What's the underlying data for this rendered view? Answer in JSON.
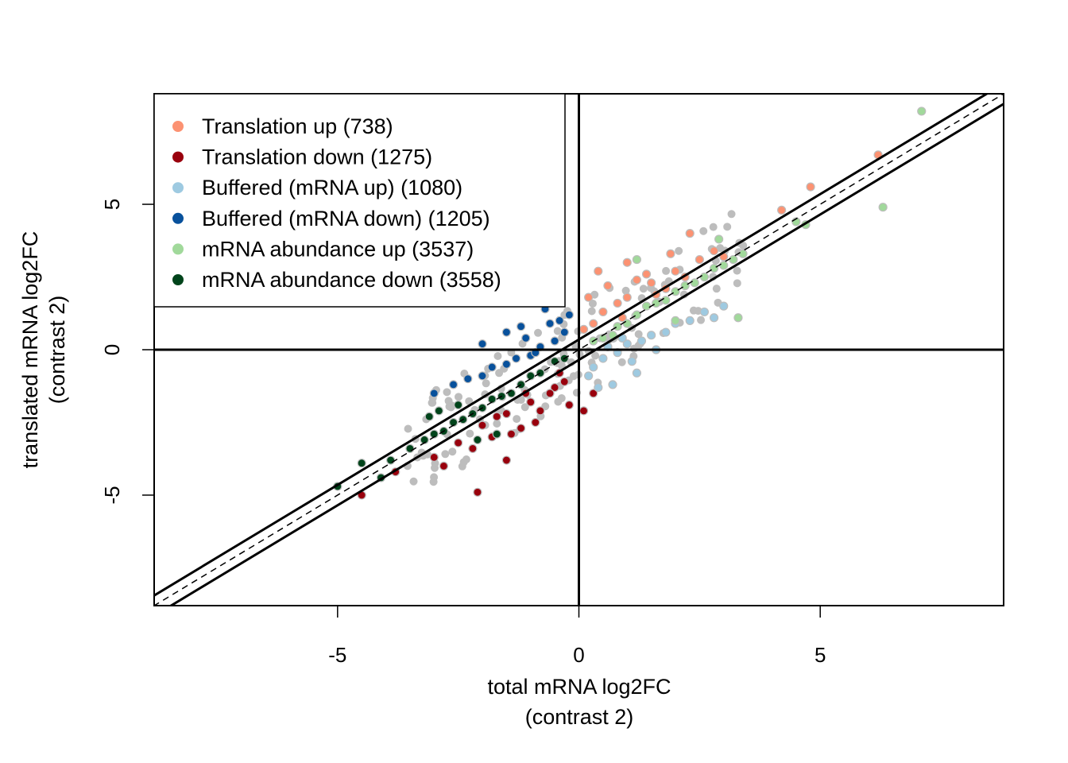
{
  "chart_data": {
    "type": "scatter",
    "title": "",
    "xlabel": [
      "total mRNA log2FC",
      "(contrast 2)"
    ],
    "ylabel": [
      "translated mRNA log2FC",
      "(contrast 2)"
    ],
    "xlim": [
      -8.8,
      8.8
    ],
    "ylim": [
      -8.8,
      8.8
    ],
    "xticks": [
      -5,
      0,
      5
    ],
    "yticks": [
      -5,
      0,
      5
    ],
    "xtick_labels": [
      "-5",
      "0",
      "5"
    ],
    "ytick_labels": [
      "-5",
      "0",
      "5"
    ],
    "grid": false,
    "legend_position": "top-left",
    "reference_lines": {
      "vertical_x": 0,
      "horizontal_y": 0,
      "identity_dashed": {
        "slope": 1,
        "intercept": 0
      },
      "threshold_solid": [
        {
          "slope": 1,
          "intercept": 0.35
        },
        {
          "slope": 1,
          "intercept": -0.35
        }
      ]
    },
    "background_color": "#bdbdbd",
    "series": [
      {
        "name": "Translation up (738)",
        "color": "#fc9272",
        "points": [
          [
            0.5,
            1.3
          ],
          [
            1.0,
            1.8
          ],
          [
            1.5,
            2.3
          ],
          [
            2.0,
            2.7
          ],
          [
            2.5,
            3.1
          ],
          [
            1.2,
            2.4
          ],
          [
            0.3,
            0.9
          ],
          [
            0.8,
            1.6
          ],
          [
            1.8,
            2.1
          ],
          [
            0.6,
            2.2
          ],
          [
            2.2,
            2.5
          ],
          [
            1.4,
            2.6
          ],
          [
            0.2,
            1.8
          ],
          [
            2.8,
            3.4
          ],
          [
            1.0,
            3.0
          ],
          [
            0.4,
            2.7
          ],
          [
            4.2,
            4.8
          ],
          [
            4.8,
            5.6
          ],
          [
            6.2,
            6.7
          ],
          [
            2.3,
            4.0
          ],
          [
            1.9,
            3.3
          ],
          [
            0.9,
            1.1
          ],
          [
            1.6,
            1.9
          ],
          [
            3.0,
            3.2
          ],
          [
            0.1,
            0.7
          ]
        ]
      },
      {
        "name": "Translation down (1275)",
        "color": "#99000d",
        "points": [
          [
            -0.5,
            -1.3
          ],
          [
            -1.0,
            -1.8
          ],
          [
            -1.5,
            -2.2
          ],
          [
            -2.0,
            -2.6
          ],
          [
            -0.8,
            -2.1
          ],
          [
            -1.2,
            -2.7
          ],
          [
            -0.3,
            -1.1
          ],
          [
            -1.8,
            -3.0
          ],
          [
            -2.5,
            -3.2
          ],
          [
            -0.6,
            -1.5
          ],
          [
            -1.4,
            -2.9
          ],
          [
            -0.2,
            -1.9
          ],
          [
            -1.1,
            -1.5
          ],
          [
            -2.2,
            -3.4
          ],
          [
            -3.0,
            -3.7
          ],
          [
            -2.8,
            -4.0
          ],
          [
            -3.8,
            -4.2
          ],
          [
            -4.5,
            -5.0
          ],
          [
            -2.1,
            -4.9
          ],
          [
            -1.5,
            -3.8
          ],
          [
            -0.9,
            -2.5
          ],
          [
            0.3,
            -1.5
          ],
          [
            0.1,
            -2.1
          ],
          [
            -1.7,
            -2.3
          ],
          [
            -0.4,
            -0.8
          ]
        ]
      },
      {
        "name": "Buffered (mRNA up) (1080)",
        "color": "#9ecae1",
        "points": [
          [
            0.5,
            -0.3
          ],
          [
            1.0,
            0.2
          ],
          [
            1.5,
            0.5
          ],
          [
            2.0,
            0.9
          ],
          [
            0.3,
            -0.6
          ],
          [
            0.8,
            -0.1
          ],
          [
            1.3,
            0.3
          ],
          [
            1.8,
            0.6
          ],
          [
            2.3,
            1.0
          ],
          [
            0.6,
            0.1
          ],
          [
            0.2,
            -0.9
          ],
          [
            1.1,
            -0.4
          ],
          [
            2.6,
            1.3
          ],
          [
            0.7,
            -1.2
          ],
          [
            1.2,
            -0.8
          ],
          [
            0.4,
            -1.3
          ],
          [
            3.0,
            1.5
          ],
          [
            2.8,
            1.1
          ],
          [
            0.9,
            0.4
          ],
          [
            1.6,
            0.0
          ]
        ]
      },
      {
        "name": "Buffered (mRNA down) (1205)",
        "color": "#08519c",
        "points": [
          [
            -0.5,
            0.3
          ],
          [
            -1.0,
            -0.2
          ],
          [
            -1.5,
            -0.5
          ],
          [
            -2.0,
            -0.9
          ],
          [
            -0.3,
            0.6
          ],
          [
            -0.8,
            0.1
          ],
          [
            -1.3,
            -0.3
          ],
          [
            -1.8,
            -0.6
          ],
          [
            -2.3,
            -1.0
          ],
          [
            -0.6,
            0.9
          ],
          [
            -0.2,
            1.2
          ],
          [
            -1.1,
            0.4
          ],
          [
            -2.6,
            -1.2
          ],
          [
            -0.7,
            1.4
          ],
          [
            -1.2,
            0.8
          ],
          [
            -0.4,
            1.0
          ],
          [
            -3.0,
            -1.5
          ],
          [
            -1.5,
            0.6
          ],
          [
            -0.9,
            -0.1
          ],
          [
            -2.0,
            0.2
          ]
        ]
      },
      {
        "name": "mRNA abundance up (3537)",
        "color": "#a1d99b",
        "points": [
          [
            0.3,
            0.3
          ],
          [
            0.8,
            0.8
          ],
          [
            1.2,
            1.2
          ],
          [
            1.6,
            1.6
          ],
          [
            2.0,
            2.0
          ],
          [
            2.4,
            2.3
          ],
          [
            2.8,
            2.8
          ],
          [
            3.2,
            3.1
          ],
          [
            0.5,
            0.4
          ],
          [
            1.0,
            0.9
          ],
          [
            1.4,
            1.5
          ],
          [
            1.8,
            1.7
          ],
          [
            2.2,
            2.2
          ],
          [
            2.6,
            2.5
          ],
          [
            3.0,
            2.9
          ],
          [
            3.4,
            3.3
          ],
          [
            4.5,
            4.4
          ],
          [
            4.7,
            4.3
          ],
          [
            6.3,
            4.9
          ],
          [
            7.1,
            8.2
          ],
          [
            2.9,
            3.8
          ],
          [
            1.2,
            3.1
          ],
          [
            3.3,
            1.1
          ],
          [
            2.0,
            1.0
          ],
          [
            0.7,
            0.5
          ]
        ]
      },
      {
        "name": "mRNA abundance down (3558)",
        "color": "#00441b",
        "points": [
          [
            -0.3,
            -0.3
          ],
          [
            -0.8,
            -0.8
          ],
          [
            -1.2,
            -1.2
          ],
          [
            -1.6,
            -1.6
          ],
          [
            -2.0,
            -2.0
          ],
          [
            -2.4,
            -2.4
          ],
          [
            -2.8,
            -2.8
          ],
          [
            -3.2,
            -3.1
          ],
          [
            -0.5,
            -0.4
          ],
          [
            -1.0,
            -0.9
          ],
          [
            -1.4,
            -1.5
          ],
          [
            -1.8,
            -1.7
          ],
          [
            -2.2,
            -2.2
          ],
          [
            -2.6,
            -2.5
          ],
          [
            -3.0,
            -2.9
          ],
          [
            -3.5,
            -3.4
          ],
          [
            -3.9,
            -3.8
          ],
          [
            -5.0,
            -4.7
          ],
          [
            -4.5,
            -3.9
          ],
          [
            -3.1,
            -2.3
          ],
          [
            -2.5,
            -1.9
          ],
          [
            -2.1,
            -3.1
          ],
          [
            -1.7,
            -2.9
          ],
          [
            -4.1,
            -4.4
          ],
          [
            -2.9,
            -2.1
          ]
        ]
      }
    ]
  }
}
